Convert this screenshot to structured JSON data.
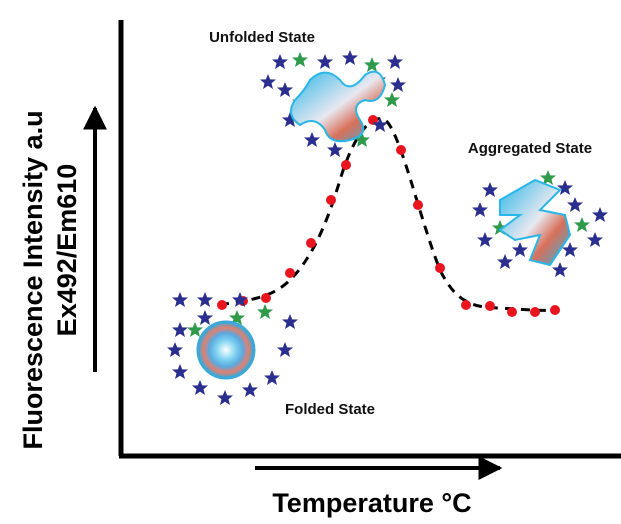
{
  "diagram": {
    "y_axis_label": [
      "Fluorescence Intensity a.u",
      "Ex492/Em610"
    ],
    "x_axis_label": "Temperature °C",
    "states": {
      "unfolded": "Unfolded State",
      "aggregated": "Aggregated State",
      "folded": "Folded State"
    }
  }
}
